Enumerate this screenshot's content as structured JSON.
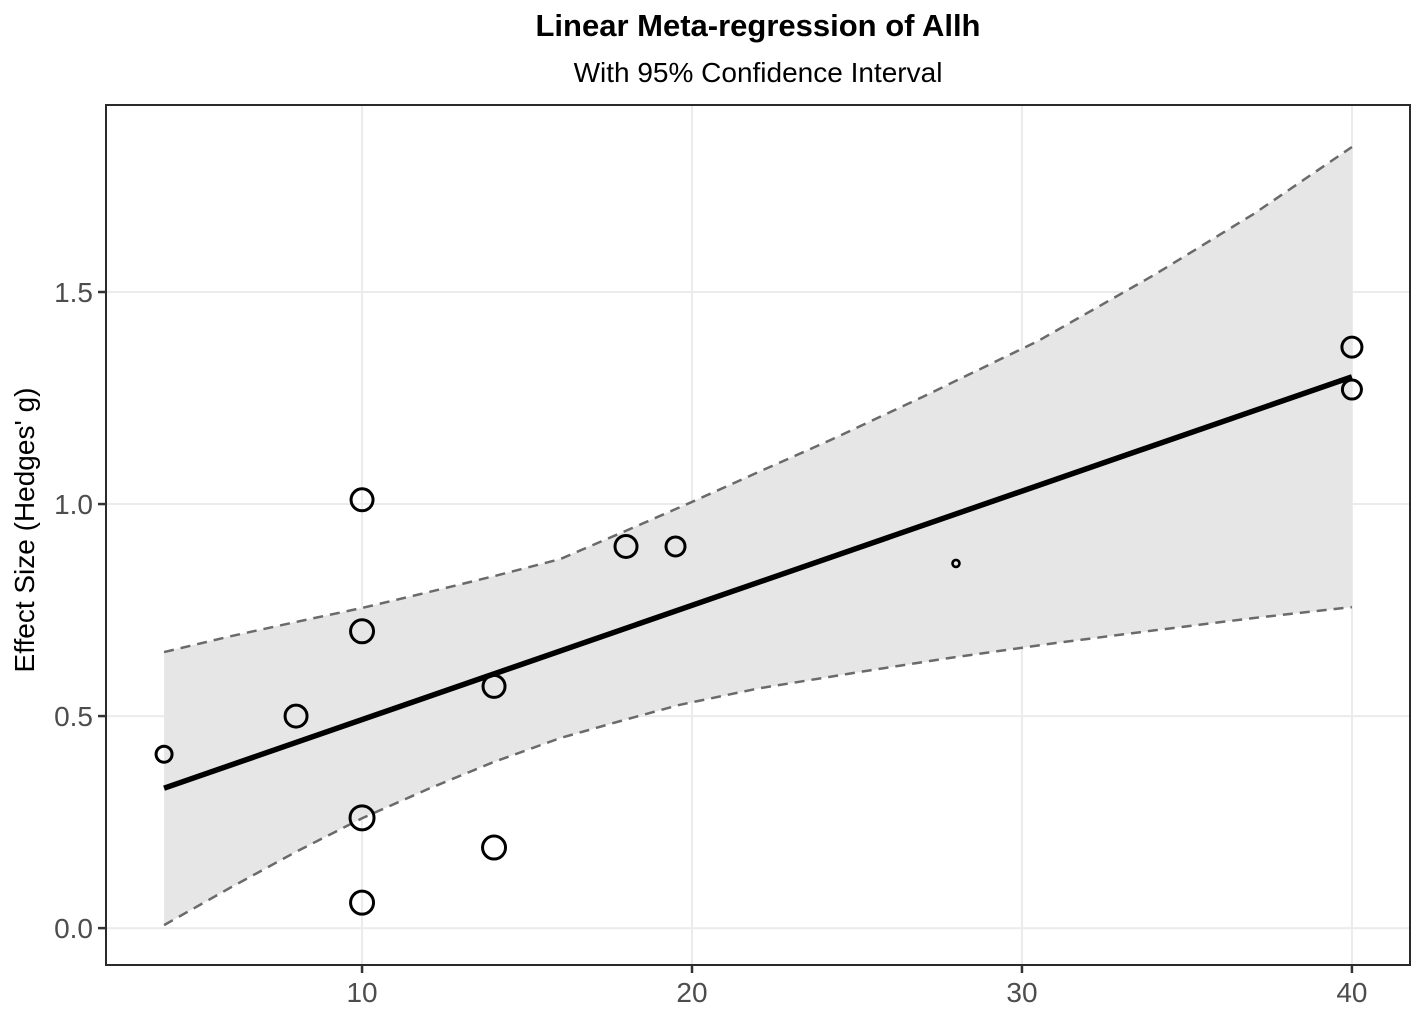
{
  "chart_data": {
    "type": "scatter",
    "title": "Linear Meta-regression of Allh",
    "subtitle": "With 95% Confidence Interval",
    "xlabel": "",
    "ylabel": "Effect Size (Hedges' g)",
    "xlim": [
      2.24,
      41.76
    ],
    "ylim": [
      -0.087,
      1.941
    ],
    "grid": true,
    "legend": "none",
    "x_ticks": [
      {
        "value": 10,
        "label": "10"
      },
      {
        "value": 20,
        "label": "20"
      },
      {
        "value": 30,
        "label": "30"
      },
      {
        "value": 40,
        "label": "40"
      }
    ],
    "y_ticks": [
      {
        "value": 0.0,
        "label": "0.0"
      },
      {
        "value": 0.5,
        "label": "0.5"
      },
      {
        "value": 1.0,
        "label": "1.0"
      },
      {
        "value": 1.5,
        "label": "1.5"
      }
    ],
    "points": [
      {
        "x": 4,
        "y": 0.41,
        "r": 8
      },
      {
        "x": 8,
        "y": 0.5,
        "r": 11
      },
      {
        "x": 10,
        "y": 1.01,
        "r": 11
      },
      {
        "x": 10,
        "y": 0.7,
        "r": 11.5
      },
      {
        "x": 10,
        "y": 0.26,
        "r": 12
      },
      {
        "x": 10,
        "y": 0.06,
        "r": 11.5
      },
      {
        "x": 14,
        "y": 0.57,
        "r": 11
      },
      {
        "x": 14,
        "y": 0.19,
        "r": 11.5
      },
      {
        "x": 18,
        "y": 0.9,
        "r": 11
      },
      {
        "x": 19.5,
        "y": 0.9,
        "r": 9.5
      },
      {
        "x": 28,
        "y": 0.86,
        "r": 3.5
      },
      {
        "x": 40,
        "y": 1.37,
        "r": 10
      },
      {
        "x": 40,
        "y": 1.27,
        "r": 9.5
      }
    ],
    "regression_line": {
      "x1": 4,
      "y1": 0.33,
      "x2": 40,
      "y2": 1.3
    },
    "ci_upper": [
      [
        4,
        0.651
      ],
      [
        6,
        0.688
      ],
      [
        8,
        0.722
      ],
      [
        10,
        0.755
      ],
      [
        12,
        0.792
      ],
      [
        14,
        0.83
      ],
      [
        16,
        0.87
      ],
      [
        18,
        0.937
      ],
      [
        20,
        1.005
      ],
      [
        22,
        1.075
      ],
      [
        24.2,
        1.151
      ],
      [
        27,
        1.253
      ],
      [
        30.5,
        1.385
      ],
      [
        34,
        1.54
      ],
      [
        37,
        1.683
      ],
      [
        40,
        1.842
      ]
    ],
    "ci_lower": [
      [
        4,
        0.007
      ],
      [
        6,
        0.095
      ],
      [
        8,
        0.18
      ],
      [
        10,
        0.259
      ],
      [
        12,
        0.328
      ],
      [
        14,
        0.392
      ],
      [
        16,
        0.448
      ],
      [
        18,
        0.492
      ],
      [
        19.6,
        0.526
      ],
      [
        22,
        0.565
      ],
      [
        25,
        0.603
      ],
      [
        27.8,
        0.637
      ],
      [
        31,
        0.672
      ],
      [
        34,
        0.702
      ],
      [
        37,
        0.731
      ],
      [
        40,
        0.757
      ]
    ],
    "colors": {
      "band": "#e6e6e6",
      "band_border": "#6a6a6a",
      "regression": "#000000",
      "grid": "#ebebeb",
      "panel_border": "#2a2a2a",
      "tick_text": "#4d4d4d",
      "tick_mark": "#333333",
      "title": "#000000"
    }
  }
}
